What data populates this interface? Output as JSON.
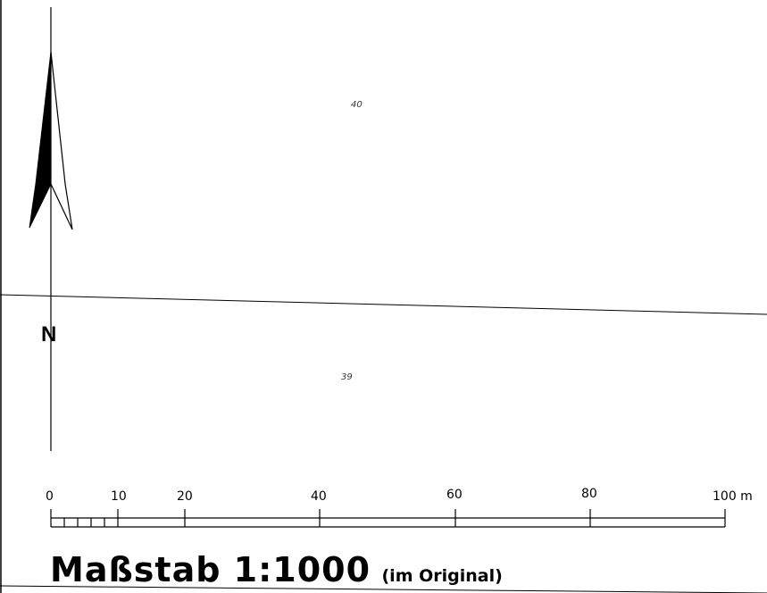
{
  "map": {
    "parcels": [
      {
        "label": "40"
      },
      {
        "label": "39"
      }
    ],
    "north_arrow": {
      "letter": "N"
    },
    "scale_bar": {
      "ticks": [
        "0",
        "10",
        "20",
        "40",
        "60",
        "80"
      ],
      "end_label": "100 m",
      "title": "Maßstab 1:1000",
      "note": "(im Original)"
    }
  },
  "colors": {
    "line": "#000000",
    "background": "#ffffff"
  }
}
